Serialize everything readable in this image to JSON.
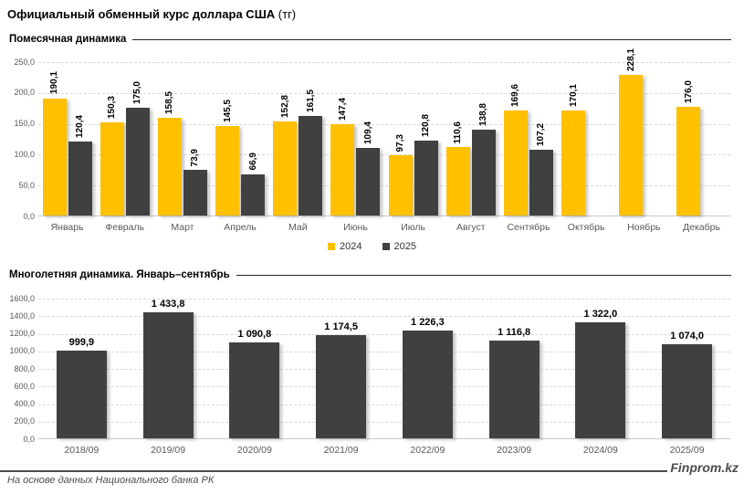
{
  "page_title": {
    "main": "Официальный обменный курс доллара США",
    "unit": "(тг)"
  },
  "sections": {
    "monthly": {
      "title": "Помесячная динамика"
    },
    "yearly": {
      "title": "Многолетняя динамика. Январь–сентябрь"
    }
  },
  "legend": {
    "items": [
      {
        "label": "2024",
        "color": "#FFC000"
      },
      {
        "label": "2025",
        "color": "#404040"
      }
    ]
  },
  "colors": {
    "series_2024": "#FFC000",
    "series_2025": "#404040",
    "gridline": "#d9d9d9",
    "axis_text": "#595959"
  },
  "footer": {
    "source_note": "На основе данных Национального банка РК",
    "brand": "Finprom.kz"
  },
  "chart_data": [
    {
      "type": "bar",
      "title": "Помесячная динамика",
      "categories": [
        "Январь",
        "Февраль",
        "Март",
        "Апрель",
        "Май",
        "Июнь",
        "Июль",
        "Август",
        "Сентябрь",
        "Октябрь",
        "Ноябрь",
        "Декабрь"
      ],
      "series": [
        {
          "name": "2024",
          "color": "#FFC000",
          "values": [
            190.1,
            150.3,
            158.5,
            145.5,
            152.8,
            147.4,
            97.3,
            110.6,
            169.6,
            170.1,
            228.1,
            176.0
          ],
          "labels": [
            "190,1",
            "150,3",
            "158,5",
            "145,5",
            "152,8",
            "147,4",
            "97,3",
            "110,6",
            "169,6",
            "170,1",
            "228,1",
            "176,0"
          ]
        },
        {
          "name": "2025",
          "color": "#404040",
          "values": [
            120.4,
            175.0,
            73.9,
            66.9,
            161.5,
            109.4,
            120.8,
            138.8,
            107.2,
            null,
            null,
            null
          ],
          "labels": [
            "120,4",
            "175,0",
            "73,9",
            "66,9",
            "161,5",
            "109,4",
            "120,8",
            "138,8",
            "107,2",
            null,
            null,
            null
          ]
        }
      ],
      "ylim": [
        0,
        250
      ],
      "ytick_step": 50,
      "yticks": [
        "250,0",
        "200,0",
        "150,0",
        "100,0",
        "50,0",
        "0,0"
      ],
      "grid": true,
      "legend_position": "bottom-center",
      "value_label_orientation": "vertical"
    },
    {
      "type": "bar",
      "title": "Многолетняя динамика. Январь–сентябрь",
      "categories": [
        "2018/09",
        "2019/09",
        "2020/09",
        "2021/09",
        "2022/09",
        "2023/09",
        "2024/09",
        "2025/09"
      ],
      "series": [
        {
          "name": "Январь–сентябрь",
          "color": "#404040",
          "values": [
            999.9,
            1433.8,
            1090.8,
            1174.5,
            1226.3,
            1116.8,
            1322.0,
            1074.0
          ],
          "labels": [
            "999,9",
            "1 433,8",
            "1 090,8",
            "1 174,5",
            "1 226,3",
            "1 116,8",
            "1 322,0",
            "1 074,0"
          ]
        }
      ],
      "ylim": [
        0,
        1600
      ],
      "ytick_step": 200,
      "yticks": [
        "1600,0",
        "1400,0",
        "1200,0",
        "1000,0",
        "800,0",
        "600,0",
        "400,0",
        "200,0",
        "0,0"
      ],
      "grid": true,
      "legend_position": "none",
      "value_label_orientation": "horizontal"
    }
  ]
}
